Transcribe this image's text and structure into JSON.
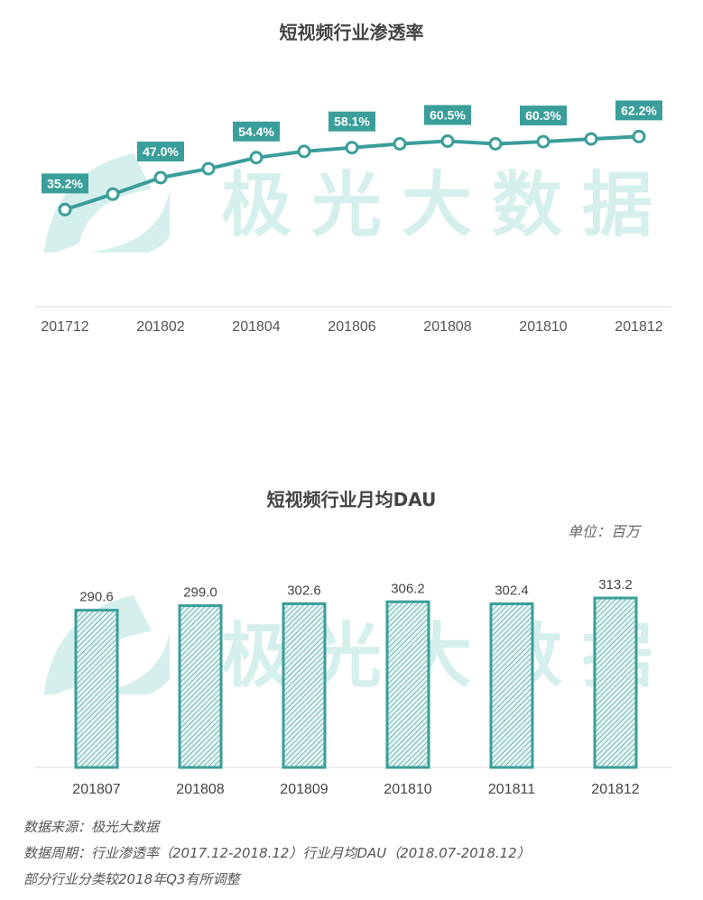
{
  "colors": {
    "accent": "#3a9e9a",
    "label_bg": "#3a9e9a",
    "watermark": "#d4efec"
  },
  "watermark": "极光大数据",
  "chart_data": [
    {
      "type": "line",
      "title": "短视频行业渗透率",
      "categories": [
        "201712",
        "201801",
        "201802",
        "201803",
        "201804",
        "201805",
        "201806",
        "201807",
        "201808",
        "201809",
        "201810",
        "201811",
        "201812"
      ],
      "values": [
        35.2,
        40.9,
        47.0,
        50.3,
        54.4,
        56.7,
        58.1,
        59.5,
        60.5,
        59.5,
        60.3,
        61.3,
        62.2
      ],
      "data_labels": [
        "35.2%",
        "",
        "47.0%",
        "",
        "54.4%",
        "",
        "58.1%",
        "",
        "60.5%",
        "",
        "60.3%",
        "",
        "62.2%"
      ],
      "tick_labels": [
        "201712",
        "",
        "201802",
        "",
        "201804",
        "",
        "201806",
        "",
        "201808",
        "",
        "201810",
        "",
        "201812"
      ],
      "ylim": [
        0,
        67
      ],
      "grid": false,
      "legend": "none"
    },
    {
      "type": "bar",
      "title": "短视频行业月均DAU",
      "unit_label": "单位：百万",
      "categories": [
        "201807",
        "201808",
        "201809",
        "201810",
        "201811",
        "201812"
      ],
      "values": [
        290.6,
        299.0,
        302.6,
        306.2,
        302.4,
        313.2
      ],
      "data_labels": [
        "290.6",
        "299.0",
        "302.6",
        "306.2",
        "302.4",
        "313.2"
      ],
      "ylim": [
        0,
        360
      ],
      "grid": false,
      "legend": "none"
    }
  ],
  "footer": [
    "数据来源：极光大数据",
    "数据周期：行业渗透率（2017.12-2018.12）行业月均DAU（2018.07-2018.12）",
    "部分行业分类较2018年Q3有所调整"
  ]
}
